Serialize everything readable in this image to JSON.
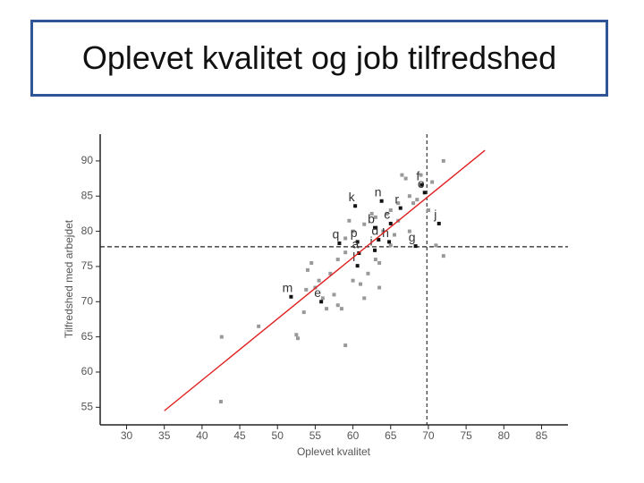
{
  "title": "Oplevet kvalitet og job tilfredshed",
  "chart_data": {
    "type": "scatter",
    "x_label": "Oplevet kvalitet",
    "y_label": "Tilfredshed med arbejdet",
    "xlim": [
      26.5,
      88.5
    ],
    "ylim": [
      52.5,
      93.8
    ],
    "xticks": [
      30,
      35,
      40,
      45,
      50,
      55,
      60,
      65,
      70,
      75,
      80,
      85
    ],
    "yticks": [
      55,
      60,
      65,
      70,
      75,
      80,
      85,
      90
    ],
    "series": [
      {
        "color": "#999999",
        "x": [
          42.6,
          42.5,
          47.5,
          52.5,
          52.7,
          53.5,
          53.8,
          54,
          54.5,
          55,
          55.5,
          56,
          56.5,
          57,
          57.5,
          58,
          58,
          58.5,
          59,
          59,
          59,
          59.5,
          60,
          60,
          61,
          61.5,
          61.5,
          62,
          62.5,
          63,
          63,
          63.5,
          63.5,
          64,
          64.5,
          65,
          65,
          65.5,
          66,
          66,
          66.5,
          67,
          67.5,
          67.5,
          68,
          68.5,
          69,
          70,
          70.5,
          71,
          72,
          72
        ],
        "y": [
          65,
          55.8,
          66.5,
          65.3,
          64.8,
          68.5,
          71.7,
          74.5,
          75.5,
          72,
          73,
          70.5,
          69,
          74,
          71,
          76,
          69.5,
          69,
          63.8,
          77,
          79,
          81.5,
          80,
          73,
          72.5,
          70.5,
          81,
          74,
          82.5,
          82,
          76,
          75.5,
          72,
          80,
          82.5,
          78,
          83,
          79.5,
          84,
          81.5,
          88,
          87.5,
          85,
          80,
          84,
          84.5,
          88,
          83,
          87,
          78,
          90,
          76.5
        ]
      },
      {
        "color": "#111111",
        "labels": [
          "f",
          "o",
          "k",
          "n",
          "r",
          "b",
          "c",
          "j",
          "q",
          "p",
          "d",
          "i",
          "h",
          "g",
          "a",
          "l",
          "m",
          "e"
        ],
        "x": [
          69.1,
          69.5,
          60.3,
          63.8,
          66.3,
          62.9,
          65.0,
          71.4,
          58.2,
          60.6,
          63.4,
          62.9,
          64.8,
          68.3,
          60.8,
          60.6,
          51.8,
          55.8
        ],
        "y": [
          86.6,
          85.5,
          83.6,
          84.3,
          83.3,
          80.5,
          81.1,
          81.1,
          78.3,
          78.5,
          78.8,
          77.3,
          78.5,
          77.9,
          76.9,
          75.1,
          70.7,
          70.0
        ]
      }
    ],
    "fit_line": {
      "x": [
        35,
        77.5
      ],
      "y": [
        54.5,
        91.5
      ],
      "color": "#e02020"
    },
    "ref_x": 69.8,
    "ref_y": 77.8
  }
}
